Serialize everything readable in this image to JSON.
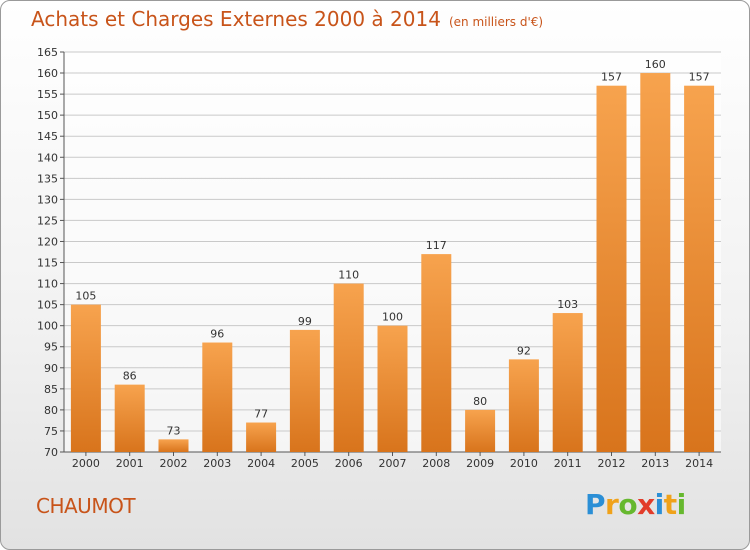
{
  "title": "Achats et Charges Externes 2000 à 2014",
  "subtitle": "(en milliers d'€)",
  "commune": "CHAUMOT",
  "logo": {
    "text": "Proxiti",
    "letters": [
      {
        "ch": "P",
        "color": "#2b8fd6"
      },
      {
        "ch": "r",
        "color": "#f0a21a"
      },
      {
        "ch": "o",
        "color": "#66b82e"
      },
      {
        "ch": "x",
        "color": "#e23c2a"
      },
      {
        "ch": "i",
        "color": "#2b8fd6"
      },
      {
        "ch": "t",
        "color": "#f0a21a"
      },
      {
        "ch": "i",
        "color": "#66b82e"
      }
    ]
  },
  "colors": {
    "bar_light": "#f7a34e",
    "bar_dark": "#d8741c",
    "grid": "#c9c9c9",
    "axis": "#555555",
    "text": "#333333",
    "accent": "#c8541a"
  },
  "chart_data": {
    "type": "bar",
    "categories": [
      "2000",
      "2001",
      "2002",
      "2003",
      "2004",
      "2005",
      "2006",
      "2007",
      "2008",
      "2009",
      "2010",
      "2011",
      "2012",
      "2013",
      "2014"
    ],
    "values": [
      105,
      86,
      73,
      96,
      77,
      99,
      110,
      100,
      117,
      80,
      92,
      103,
      157,
      160,
      157
    ],
    "ylim": [
      70,
      165
    ],
    "yticks": [
      70,
      75,
      80,
      85,
      90,
      95,
      100,
      105,
      110,
      115,
      120,
      125,
      130,
      135,
      140,
      145,
      150,
      155,
      160,
      165
    ],
    "grid": true,
    "data_labels": true
  }
}
